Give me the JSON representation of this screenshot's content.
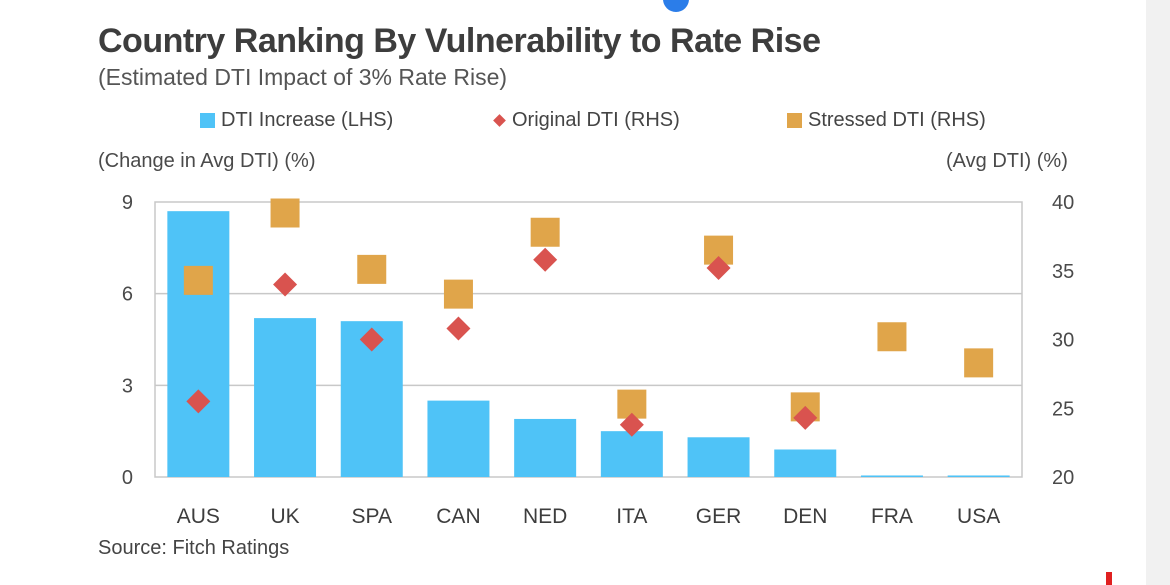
{
  "chart_data": {
    "type": "bar",
    "title": "Country Ranking By Vulnerability to Rate Rise",
    "subtitle": "(Estimated DTI Impact of 3% Rate Rise)",
    "categories": [
      "AUS",
      "UK",
      "SPA",
      "CAN",
      "NED",
      "ITA",
      "GER",
      "DEN",
      "FRA",
      "USA"
    ],
    "series": [
      {
        "name": "DTI Increase (LHS)",
        "mark": "bar",
        "axis": "left",
        "color": "#4fc3f7",
        "values": [
          8.7,
          5.2,
          5.1,
          2.5,
          1.9,
          1.5,
          1.3,
          0.9,
          0.05,
          0.05
        ]
      },
      {
        "name": "Original DTI (RHS)",
        "mark": "diamond",
        "axis": "right",
        "color": "#d9534f",
        "values": [
          25.5,
          34.0,
          30.0,
          30.8,
          35.8,
          23.8,
          35.2,
          24.3,
          null,
          null
        ]
      },
      {
        "name": "Stressed DTI (RHS)",
        "mark": "square",
        "axis": "right",
        "color": "#e0a54a",
        "values": [
          34.3,
          39.2,
          35.1,
          33.3,
          37.8,
          25.3,
          36.5,
          25.1,
          30.2,
          28.3
        ]
      }
    ],
    "ylabel_left": "(Change in Avg DTI) (%)",
    "ylabel_right": "(Avg DTI) (%)",
    "ylim_left": [
      0,
      9
    ],
    "ylim_right": [
      20,
      40
    ],
    "yticks_left": [
      "0",
      "3",
      "6",
      "9"
    ],
    "yticks_right": [
      "20",
      "25",
      "30",
      "35",
      "40"
    ],
    "grid": true,
    "legend_position": "top"
  },
  "source": "Source: Fitch Ratings"
}
